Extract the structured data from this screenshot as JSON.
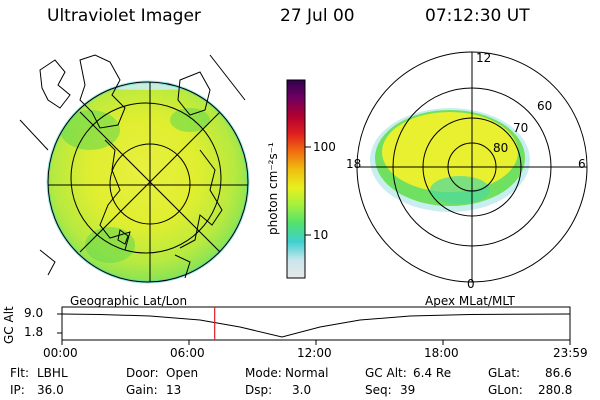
{
  "header": {
    "title": "Ultraviolet Imager",
    "date": "27 Jul 00",
    "time": "07:12:30 UT"
  },
  "colorbar": {
    "unit_label": "photon cm⁻²s⁻¹",
    "tick_100": "100",
    "tick_10": "10",
    "stops": [
      "#e8e8e8",
      "#c8e6ec",
      "#40d0d0",
      "#50e070",
      "#a0f040",
      "#e8f020",
      "#f0c010",
      "#f07010",
      "#e02020",
      "#b00030",
      "#700060",
      "#300050"
    ]
  },
  "left_panel": {
    "label": "Geographic Lat/Lon"
  },
  "right_panel": {
    "label": "Apex MLat/MLT",
    "mlt_12": "12",
    "mlt_18": "18",
    "mlt_6": "6",
    "mlt_0": "0",
    "lat_60": "60",
    "lat_70": "70",
    "lat_80": "80"
  },
  "timeline": {
    "ylabel": "GC Alt",
    "y_top": "9.0",
    "y_bot": "1.8",
    "ticks": [
      "00:00",
      "06:00",
      "12:00",
      "18:00",
      "23:59"
    ],
    "cursor_time": "07:12:30",
    "cursor_color": "#e02020"
  },
  "info": {
    "flt_label": "Flt:",
    "flt_value": "LBHL",
    "ip_label": "IP:",
    "ip_value": "36.0",
    "door_label": "Door:",
    "door_value": "Open",
    "gain_label": "Gain:",
    "gain_value": "13",
    "mode_label": "Mode:",
    "mode_value": "Normal",
    "dsp_label": "Dsp:",
    "dsp_value": "3.0",
    "gcalt_label": "GC Alt:",
    "gcalt_value": "6.4 Re",
    "seq_label": "Seq:",
    "seq_value": "39",
    "glat_label": "GLat:",
    "glat_value": "86.6",
    "glon_label": "GLon:",
    "glon_value": "280.8"
  }
}
